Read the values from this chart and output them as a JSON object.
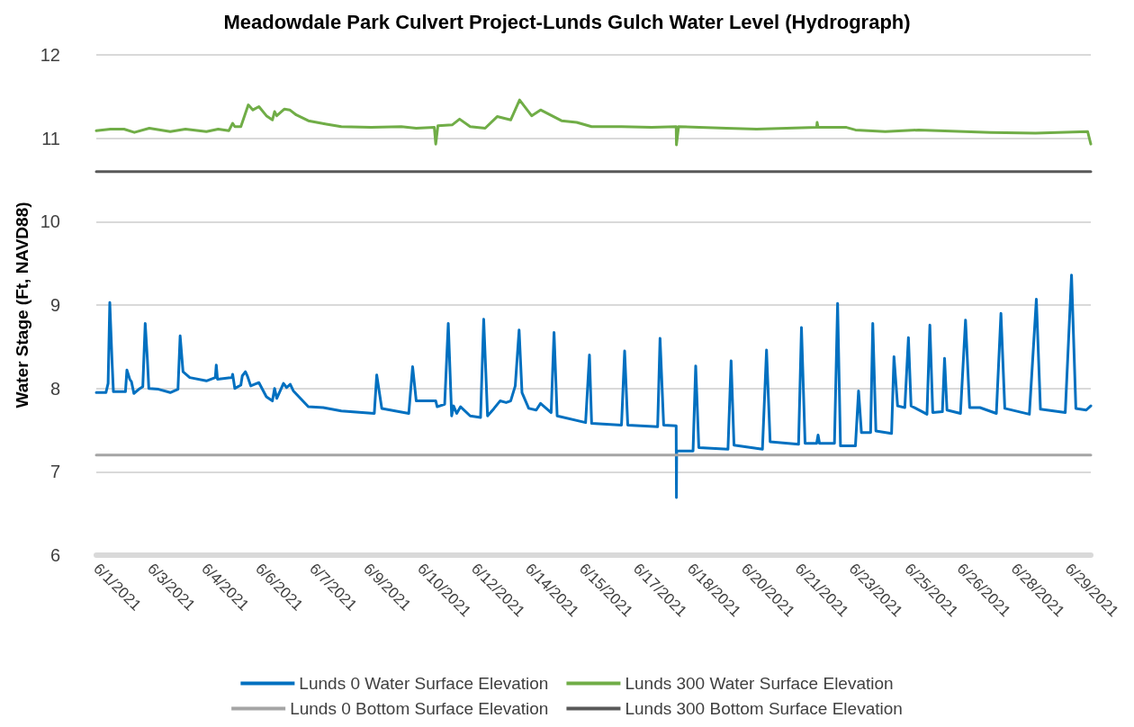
{
  "chart_data": {
    "type": "line",
    "title": "Meadowdale Park Culvert Project-Lunds Gulch Water Level (Hydrograph)",
    "ylabel": "Water Stage (Ft, NAVD88)",
    "xlim": [
      "2021-06-01T15:00",
      "2021-06-30T07:00"
    ],
    "xticks": [
      {
        "value": "2021-06-01T15:00",
        "label": "6/1/2021"
      },
      {
        "value": "2021-06-03T04:20",
        "label": "6/3/2021"
      },
      {
        "value": "2021-06-04T17:40",
        "label": "6/4/2021"
      },
      {
        "value": "2021-06-06T07:00",
        "label": "6/6/2021"
      },
      {
        "value": "2021-06-07T20:20",
        "label": "6/7/2021"
      },
      {
        "value": "2021-06-09T09:40",
        "label": "6/9/2021"
      },
      {
        "value": "2021-06-10T23:00",
        "label": "6/10/2021"
      },
      {
        "value": "2021-06-12T12:20",
        "label": "6/12/2021"
      },
      {
        "value": "2021-06-14T01:40",
        "label": "6/14/2021"
      },
      {
        "value": "2021-06-15T15:00",
        "label": "6/15/2021"
      },
      {
        "value": "2021-06-17T04:20",
        "label": "6/17/2021"
      },
      {
        "value": "2021-06-18T17:40",
        "label": "6/18/2021"
      },
      {
        "value": "2021-06-20T07:00",
        "label": "6/20/2021"
      },
      {
        "value": "2021-06-21T20:20",
        "label": "6/21/2021"
      },
      {
        "value": "2021-06-23T09:40",
        "label": "6/23/2021"
      },
      {
        "value": "2021-06-25T00:00",
        "label": "6/25/2021"
      },
      {
        "value": "2021-06-26T12:20",
        "label": "6/26/2021"
      },
      {
        "value": "2021-06-28T01:40",
        "label": "6/28/2021"
      },
      {
        "value": "2021-06-29T15:00",
        "label": "6/29/2021"
      }
    ],
    "ylim": [
      6,
      12
    ],
    "yticks": [
      6,
      7,
      8,
      9,
      10,
      11,
      12
    ],
    "grid": "y",
    "legend": "bottom",
    "marker": "none",
    "line_style": "solid",
    "series": [
      {
        "name": "Lunds 0 Water Surface Elevation",
        "color": "#0070c0",
        "x": [
          "2021-06-01T15:00",
          "2021-06-01T21:40",
          "2021-06-01T23:10",
          "2021-06-02T00:20",
          "2021-06-02T01:50",
          "2021-06-02T02:50",
          "2021-06-02T11:10",
          "2021-06-02T12:10",
          "2021-06-02T14:10",
          "2021-06-02T15:20",
          "2021-06-02T17:00",
          "2021-06-02T20:30",
          "2021-06-02T23:10",
          "2021-06-03T00:50",
          "2021-06-03T02:20",
          "2021-06-03T03:20",
          "2021-06-03T10:00",
          "2021-06-03T18:10",
          "2021-06-03T23:30",
          "2021-06-04T01:00",
          "2021-06-04T03:00",
          "2021-06-04T07:40",
          "2021-06-04T19:10",
          "2021-06-05T01:20",
          "2021-06-05T02:00",
          "2021-06-05T02:50",
          "2021-06-05T12:50",
          "2021-06-05T13:20",
          "2021-06-05T14:50",
          "2021-06-05T19:00",
          "2021-06-05T20:00",
          "2021-06-05T22:10",
          "2021-06-05T23:30",
          "2021-06-06T01:50",
          "2021-06-06T07:30",
          "2021-06-06T12:40",
          "2021-06-06T16:50",
          "2021-06-06T18:20",
          "2021-06-06T19:50",
          "2021-06-07T00:30",
          "2021-06-07T02:40",
          "2021-06-07T05:10",
          "2021-06-07T07:20",
          "2021-06-07T17:40",
          "2021-06-08T04:00",
          "2021-06-08T16:30",
          "2021-06-09T15:20",
          "2021-06-09T17:00",
          "2021-06-09T20:30",
          "2021-06-10T15:10",
          "2021-06-10T17:50",
          "2021-06-10T20:20",
          "2021-06-11T09:50",
          "2021-06-11T10:50",
          "2021-06-11T16:00",
          "2021-06-11T18:30",
          "2021-06-11T20:50",
          "2021-06-11T22:10",
          "2021-06-12T00:20",
          "2021-06-12T03:00",
          "2021-06-12T09:40",
          "2021-06-12T16:50",
          "2021-06-12T19:00",
          "2021-06-12T21:40",
          "2021-06-13T02:10",
          "2021-06-13T06:20",
          "2021-06-13T10:30",
          "2021-06-13T13:40",
          "2021-06-13T16:50",
          "2021-06-13T19:30",
          "2021-06-13T21:30",
          "2021-06-14T02:10",
          "2021-06-14T07:20",
          "2021-06-14T10:20",
          "2021-06-14T17:40",
          "2021-06-14T19:40",
          "2021-06-14T21:50",
          "2021-06-15T17:30",
          "2021-06-15T20:10",
          "2021-06-15T21:40",
          "2021-06-16T18:20",
          "2021-06-16T20:30",
          "2021-06-16T22:40",
          "2021-06-17T19:20",
          "2021-06-17T21:00",
          "2021-06-17T23:30",
          "2021-06-18T08:10",
          "2021-06-18T08:20",
          "2021-06-18T08:30",
          "2021-06-18T19:50",
          "2021-06-18T21:40",
          "2021-06-18T23:50",
          "2021-06-19T20:00",
          "2021-06-19T22:10",
          "2021-06-20T00:10",
          "2021-06-20T19:50",
          "2021-06-20T22:40",
          "2021-06-21T01:10",
          "2021-06-21T20:50",
          "2021-06-21T22:50",
          "2021-06-22T01:20",
          "2021-06-22T09:20",
          "2021-06-22T10:20",
          "2021-06-22T11:20",
          "2021-06-22T21:40",
          "2021-06-22T23:50",
          "2021-06-23T01:50",
          "2021-06-23T12:10",
          "2021-06-23T14:20",
          "2021-06-23T16:20",
          "2021-06-23T22:40",
          "2021-06-24T00:10",
          "2021-06-24T02:20",
          "2021-06-24T13:10",
          "2021-06-24T14:50",
          "2021-06-24T17:20",
          "2021-06-24T22:20",
          "2021-06-25T00:50",
          "2021-06-25T02:40",
          "2021-06-25T13:40",
          "2021-06-25T15:40",
          "2021-06-25T17:40",
          "2021-06-26T00:20",
          "2021-06-26T01:50",
          "2021-06-26T03:30",
          "2021-06-26T12:50",
          "2021-06-26T16:20",
          "2021-06-26T19:10",
          "2021-06-27T02:20",
          "2021-06-27T13:40",
          "2021-06-27T16:50",
          "2021-06-27T19:30",
          "2021-06-28T12:30",
          "2021-06-28T17:20",
          "2021-06-28T20:10",
          "2021-06-29T13:20",
          "2021-06-29T17:40",
          "2021-06-29T20:40",
          "2021-06-30T03:50",
          "2021-06-30T07:00"
        ],
        "values": [
          7.95,
          7.95,
          8.06,
          9.03,
          8.35,
          7.96,
          7.96,
          8.22,
          8.11,
          8.08,
          7.94,
          7.99,
          8.02,
          8.78,
          8.35,
          8.0,
          7.99,
          7.95,
          7.99,
          8.63,
          8.2,
          8.13,
          8.09,
          8.13,
          8.28,
          8.11,
          8.13,
          8.17,
          8.0,
          8.04,
          8.15,
          8.2,
          8.15,
          8.03,
          8.07,
          7.9,
          7.85,
          8.0,
          7.88,
          8.06,
          8.01,
          8.05,
          7.97,
          7.78,
          7.77,
          7.73,
          7.7,
          8.16,
          7.76,
          7.7,
          8.26,
          7.85,
          7.85,
          7.78,
          7.81,
          8.78,
          7.67,
          7.79,
          7.7,
          7.78,
          7.67,
          7.65,
          8.83,
          7.67,
          7.76,
          7.85,
          7.83,
          7.85,
          8.03,
          8.7,
          7.95,
          7.76,
          7.74,
          7.82,
          7.71,
          8.67,
          7.67,
          7.59,
          8.4,
          7.58,
          7.56,
          8.45,
          7.56,
          7.54,
          8.6,
          7.56,
          7.55,
          6.69,
          7.25,
          7.25,
          8.27,
          7.29,
          7.27,
          8.33,
          7.32,
          7.27,
          8.46,
          7.36,
          7.33,
          8.73,
          7.34,
          7.34,
          7.44,
          7.34,
          7.34,
          9.02,
          7.31,
          7.31,
          7.97,
          7.47,
          7.47,
          8.78,
          7.49,
          7.46,
          8.38,
          7.79,
          7.77,
          8.61,
          7.79,
          7.69,
          8.76,
          7.71,
          7.72,
          8.36,
          7.74,
          7.7,
          8.82,
          7.77,
          7.77,
          7.7,
          8.9,
          7.76,
          7.69,
          9.07,
          7.75,
          7.71,
          9.36,
          7.76,
          7.74,
          7.79
        ]
      },
      {
        "name": "Lunds 300 Water Surface Elevation",
        "color": "#70ad47",
        "x": [
          "2021-06-01T15:00",
          "2021-06-02T00:50",
          "2021-06-02T10:10",
          "2021-06-02T17:20",
          "2021-06-03T03:40",
          "2021-06-03T18:10",
          "2021-06-04T04:40",
          "2021-06-04T19:10",
          "2021-06-05T03:20",
          "2021-06-05T10:40",
          "2021-06-05T13:20",
          "2021-06-05T14:50",
          "2021-06-05T16:50",
          "2021-06-05T19:00",
          "2021-06-06T00:10",
          "2021-06-06T03:20",
          "2021-06-06T07:30",
          "2021-06-06T12:40",
          "2021-06-06T16:50",
          "2021-06-06T18:20",
          "2021-06-06T19:50",
          "2021-06-07T01:10",
          "2021-06-07T04:50",
          "2021-06-07T09:20",
          "2021-06-07T17:40",
          "2021-06-08T06:10",
          "2021-06-08T16:30",
          "2021-06-09T13:10",
          "2021-06-10T10:00",
          "2021-06-10T20:20",
          "2021-06-11T08:50",
          "2021-06-11T09:50",
          "2021-06-11T11:20",
          "2021-06-11T21:10",
          "2021-06-12T02:20",
          "2021-06-12T09:40",
          "2021-06-12T20:00",
          "2021-06-13T04:20",
          "2021-06-13T13:40",
          "2021-06-13T19:50",
          "2021-06-14T04:10",
          "2021-06-14T10:20",
          "2021-06-15T00:50",
          "2021-06-15T11:20",
          "2021-06-15T21:40",
          "2021-06-16T18:20",
          "2021-06-17T15:10",
          "2021-06-18T08:10",
          "2021-06-18T08:20",
          "2021-06-18T09:50",
          "2021-06-19T19:00",
          "2021-06-20T15:50",
          "2021-06-21T12:30",
          "2021-06-22T09:20",
          "2021-06-22T09:40",
          "2021-06-22T10:20",
          "2021-06-23T06:00",
          "2021-06-23T12:10",
          "2021-06-24T08:50",
          "2021-06-25T07:50",
          "2021-06-27T09:40",
          "2021-06-28T16:40",
          "2021-06-30T04:50",
          "2021-06-30T07:00"
        ],
        "values": [
          11.09,
          11.11,
          11.11,
          11.07,
          11.12,
          11.08,
          11.11,
          11.08,
          11.11,
          11.09,
          11.18,
          11.14,
          11.14,
          11.14,
          11.4,
          11.34,
          11.38,
          11.27,
          11.22,
          11.32,
          11.27,
          11.35,
          11.34,
          11.28,
          11.21,
          11.17,
          11.14,
          11.13,
          11.14,
          11.12,
          11.13,
          10.93,
          11.15,
          11.16,
          11.23,
          11.14,
          11.12,
          11.26,
          11.22,
          11.46,
          11.27,
          11.34,
          11.21,
          11.19,
          11.14,
          11.14,
          11.13,
          11.14,
          10.92,
          11.14,
          11.12,
          11.11,
          11.12,
          11.13,
          11.19,
          11.13,
          11.13,
          11.1,
          11.08,
          11.1,
          11.07,
          11.06,
          11.08,
          10.93
        ]
      },
      {
        "name": "Lunds 0 Bottom Surface Elevation",
        "color": "#a5a5a5",
        "x": [
          "2021-06-01T15:00",
          "2021-06-30T07:00"
        ],
        "values": [
          7.2,
          7.2
        ]
      },
      {
        "name": "Lunds 300 Bottom Surface Elevation",
        "color": "#595959",
        "x": [
          "2021-06-01T15:00",
          "2021-06-30T07:00"
        ],
        "values": [
          10.6,
          10.6
        ]
      }
    ]
  }
}
